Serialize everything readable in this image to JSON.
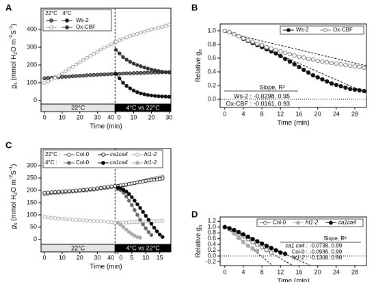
{
  "chart_data": [
    {
      "type": "line",
      "label": "A",
      "ylabel": [
        "g",
        "s",
        " (mmol H",
        "2",
        "O m",
        "-2",
        "S",
        "-1",
        ")"
      ],
      "xlabel": "Time (min)",
      "x": [
        0,
        2,
        4,
        6,
        8,
        10,
        12,
        14,
        16,
        18,
        20,
        22,
        24,
        26,
        28,
        30,
        32,
        34,
        36,
        38,
        40
      ],
      "xlim": [
        -2,
        40
      ],
      "xticks": [
        0,
        10,
        20,
        30,
        40
      ],
      "x2": [
        0,
        2,
        4,
        6,
        8,
        10,
        12,
        14,
        16,
        18,
        20,
        22,
        24,
        26,
        28,
        30
      ],
      "x2lim": [
        -0.5,
        31
      ],
      "x2ticks": [
        0,
        10,
        20,
        30
      ],
      "ylim": [
        -20,
        520
      ],
      "yticks": [
        0,
        100,
        200,
        300,
        400
      ],
      "periods": [
        "22°C",
        "4°C vs 22°C"
      ],
      "legend_conditions": [
        "22°C",
        "4°C"
      ],
      "series": [
        {
          "name": "Ws-2",
          "color": "#111111",
          "marker_fill": "#777777",
          "values": [
            125,
            127,
            128,
            130,
            131,
            133,
            134,
            135,
            137,
            138,
            139,
            140,
            142,
            143,
            144,
            145,
            146,
            147,
            148,
            149,
            150
          ],
          "values2": [
            150,
            151,
            152,
            153,
            153,
            154,
            155,
            155,
            156,
            157,
            157,
            158,
            158,
            159,
            159,
            160
          ]
        },
        {
          "color": "#111111",
          "marker_fill": "#111111",
          "values2": [
            150,
            125,
            100,
            82,
            68,
            56,
            47,
            40,
            35,
            31,
            28,
            26,
            24,
            23,
            22,
            21
          ]
        },
        {
          "name": "Ox-CBF",
          "color": "#999999",
          "marker_fill": "#ffffff",
          "values": [
            100,
            108,
            118,
            128,
            140,
            152,
            165,
            178,
            190,
            203,
            215,
            228,
            240,
            252,
            263,
            275,
            287,
            298,
            308,
            318,
            330
          ],
          "values2": [
            330,
            340,
            348,
            356,
            363,
            370,
            376,
            382,
            388,
            394,
            400,
            405,
            410,
            415,
            420,
            428
          ]
        },
        {
          "color": "#333333",
          "marker_fill": "#333333",
          "values2": [
            285,
            265,
            245,
            230,
            218,
            208,
            200,
            193,
            186,
            180,
            175,
            170,
            166,
            163,
            160,
            158
          ]
        }
      ]
    },
    {
      "type": "line",
      "label": "B",
      "ylabel": [
        "Relative g",
        "s"
      ],
      "xlabel": "Time (min)",
      "x": [
        0,
        1,
        2,
        3,
        4,
        5,
        6,
        7,
        8,
        9,
        10,
        11,
        12,
        13,
        14,
        15,
        16,
        17,
        18,
        19,
        20,
        21,
        22,
        23,
        24,
        25,
        26,
        27,
        28,
        29,
        30
      ],
      "xlim": [
        -1,
        30.5
      ],
      "xticks": [
        0,
        4,
        8,
        12,
        16,
        20,
        24,
        28
      ],
      "ylim": [
        -0.12,
        1.1
      ],
      "yticks": [
        {
          "value": 0,
          "label": "0.0"
        },
        0.2,
        0.4,
        0.6,
        0.8,
        {
          "value": 1,
          "label": "1.0"
        }
      ],
      "zero_line": true,
      "series": [
        {
          "name": "Ws-2",
          "color": "#111111",
          "marker_fill": "#111111",
          "values": [
            1,
            0.98,
            0.95,
            0.92,
            0.88,
            0.85,
            0.82,
            0.79,
            0.76,
            0.73,
            0.7,
            0.67,
            0.63,
            0.59,
            0.55,
            0.51,
            0.47,
            0.43,
            0.39,
            0.35,
            0.32,
            0.29,
            0.26,
            0.23,
            0.21,
            0.19,
            0.17,
            0.15,
            0.14,
            0.13,
            0.12
          ]
        },
        {
          "name": "Ox-CBF",
          "color": "#777777",
          "marker_fill": "#ffffff",
          "values": [
            1,
            0.98,
            0.95,
            0.92,
            0.89,
            0.86,
            0.84,
            0.81,
            0.79,
            0.76,
            0.74,
            0.72,
            0.7,
            0.68,
            0.66,
            0.64,
            0.62,
            0.61,
            0.59,
            0.58,
            0.56,
            0.55,
            0.54,
            0.53,
            0.52,
            0.51,
            0.5,
            0.49,
            0.48,
            0.47,
            0.46
          ]
        }
      ],
      "fits": {
        "header": "Slope,  R²",
        "rows": [
          {
            "name": "Ws-2 :",
            "label": "-0.0298, 0.95",
            "slope": -0.0298,
            "intercept": 1
          },
          {
            "name": "Ox-CBF :",
            "label": "-0.0161, 0.93",
            "slope": -0.0161,
            "intercept": 0.98
          }
        ]
      }
    },
    {
      "type": "line",
      "label": "C",
      "ylabel": [
        "g",
        "s",
        " (mmol H",
        "2",
        "O m",
        "-2",
        "S",
        "-1",
        ")"
      ],
      "xlabel": "Time (min)",
      "x": [
        0,
        2,
        4,
        6,
        8,
        10,
        12,
        14,
        16,
        18,
        20,
        22,
        24,
        26,
        28,
        30,
        32,
        34,
        36,
        38,
        40
      ],
      "xlim": [
        -2,
        40
      ],
      "xticks": [
        0,
        10,
        20,
        30,
        40
      ],
      "x2": [
        0,
        1,
        2,
        3,
        4,
        5,
        6,
        7,
        8,
        9,
        10,
        11,
        12,
        13,
        14,
        15,
        16
      ],
      "x2lim": [
        -1,
        19
      ],
      "x2ticks": [
        0,
        5,
        10,
        15
      ],
      "ylim": [
        -20,
        370
      ],
      "yticks": [
        0,
        50,
        100,
        150,
        200,
        250,
        300
      ],
      "periods": [
        "22°C",
        "4°C vs 22°C"
      ],
      "legend_conditions": [
        "22°C :",
        "4°C :"
      ],
      "series": [
        {
          "name": "Col-0",
          "color": "#555555",
          "marker_fill": "#ffffff",
          "values": [
            185,
            186,
            188,
            189,
            190,
            191,
            193,
            194,
            195,
            196,
            198,
            199,
            200,
            202,
            203,
            205,
            207,
            209,
            211,
            213,
            215
          ],
          "values2": [
            215,
            218,
            220,
            222,
            225,
            227,
            230,
            232,
            235,
            237,
            240,
            242,
            245,
            247,
            250,
            252,
            255
          ]
        },
        {
          "name": "ca1ca4",
          "italic": true,
          "color": "#111111",
          "marker_fill": "#ffffff",
          "values": [
            190,
            191,
            192,
            193,
            194,
            195,
            196,
            197,
            198,
            199,
            200,
            202,
            203,
            205,
            206,
            208,
            210,
            212,
            214,
            216,
            218
          ],
          "values2": [
            218,
            220,
            222,
            224,
            226,
            228,
            230,
            232,
            234,
            236,
            238,
            240,
            241,
            243,
            244,
            246,
            248
          ]
        },
        {
          "name": "ht1-2",
          "italic": true,
          "color": "#aaaaaa",
          "marker_fill": "#ffffff",
          "values": [
            92,
            90,
            88,
            87,
            85,
            84,
            83,
            82,
            81,
            80,
            79,
            78,
            77,
            76,
            75,
            75,
            74,
            73,
            72,
            70,
            68
          ],
          "values2": [
            68,
            68,
            69,
            69,
            70,
            70,
            71,
            71,
            72,
            72,
            73,
            73,
            74,
            74,
            75,
            75,
            76
          ]
        },
        {
          "name": "Col-0",
          "color": "#666666",
          "marker_fill": "#666666",
          "values2": [
            205,
            200,
            190,
            175,
            158,
            140,
            120,
            100,
            80,
            62,
            45,
            30,
            18,
            null,
            null,
            null,
            null
          ]
        },
        {
          "name": "ca1ca4",
          "italic": true,
          "color": "#000000",
          "marker_fill": "#000000",
          "values2": [
            210,
            208,
            202,
            195,
            185,
            172,
            158,
            143,
            128,
            112,
            96,
            80,
            64,
            48,
            33,
            20,
            10
          ]
        },
        {
          "name": "ht1-2",
          "italic": true,
          "color": "#aaaaaa",
          "marker_fill": "#aaaaaa",
          "values2": [
            68,
            60,
            50,
            40,
            30,
            22,
            15,
            10,
            7,
            null,
            null,
            null,
            null,
            null,
            null,
            null,
            null
          ]
        }
      ]
    },
    {
      "type": "line",
      "label": "D",
      "ylabel": [
        "Relative g",
        "s"
      ],
      "xlabel": "Time (min)",
      "x": [
        0,
        1,
        2,
        3,
        4,
        5,
        6,
        7,
        8,
        9,
        10,
        11,
        12,
        13
      ],
      "xlim": [
        -1,
        30.5
      ],
      "xticks": [
        0,
        4,
        8,
        12,
        16,
        20,
        24,
        28
      ],
      "ylim": [
        -0.33,
        1.35
      ],
      "yticks": [
        -0.2,
        {
          "value": 0,
          "label": "0.0"
        },
        0.2,
        0.4,
        0.6,
        0.8,
        {
          "value": 1,
          "label": "1.0"
        },
        1.2
      ],
      "zero_line": true,
      "series": [
        {
          "name": "Col-0",
          "color": "#555555",
          "marker_fill": "#ffffff",
          "values": [
            1,
            0.96,
            0.88,
            0.78,
            0.68,
            0.58,
            0.48,
            0.39,
            0.3,
            0.21,
            0.12,
            null,
            null,
            null
          ]
        },
        {
          "name": "ht1-2",
          "italic": true,
          "color": "#aaaaaa",
          "marker_fill": "#aaaaaa",
          "values": [
            1,
            0.92,
            0.78,
            0.62,
            0.48,
            0.36,
            0.26,
            0.18,
            null,
            null,
            null,
            null,
            null,
            null
          ]
        },
        {
          "name": "ca1ca4",
          "italic": true,
          "color": "#000000",
          "marker_fill": "#000000",
          "values": [
            1,
            0.96,
            0.9,
            0.83,
            0.75,
            0.67,
            0.59,
            0.51,
            0.43,
            0.35,
            0.28,
            0.2,
            0.12,
            0.08
          ]
        }
      ],
      "fits": {
        "header": "Slope,  R²",
        "rows": [
          {
            "name": "ca1 ca4 :",
            "italic": true,
            "label": "-0.0738, 0.99",
            "slope": -0.0738,
            "intercept": 1.03
          },
          {
            "name": "Col-0 :",
            "label": "-0.0936, 0.99",
            "slope": -0.0936,
            "intercept": 1.04
          },
          {
            "name": "ht1-2 :",
            "italic": true,
            "label": "-0.1308, 0.98",
            "slope": -0.1308,
            "intercept": 1.02
          }
        ]
      }
    }
  ]
}
